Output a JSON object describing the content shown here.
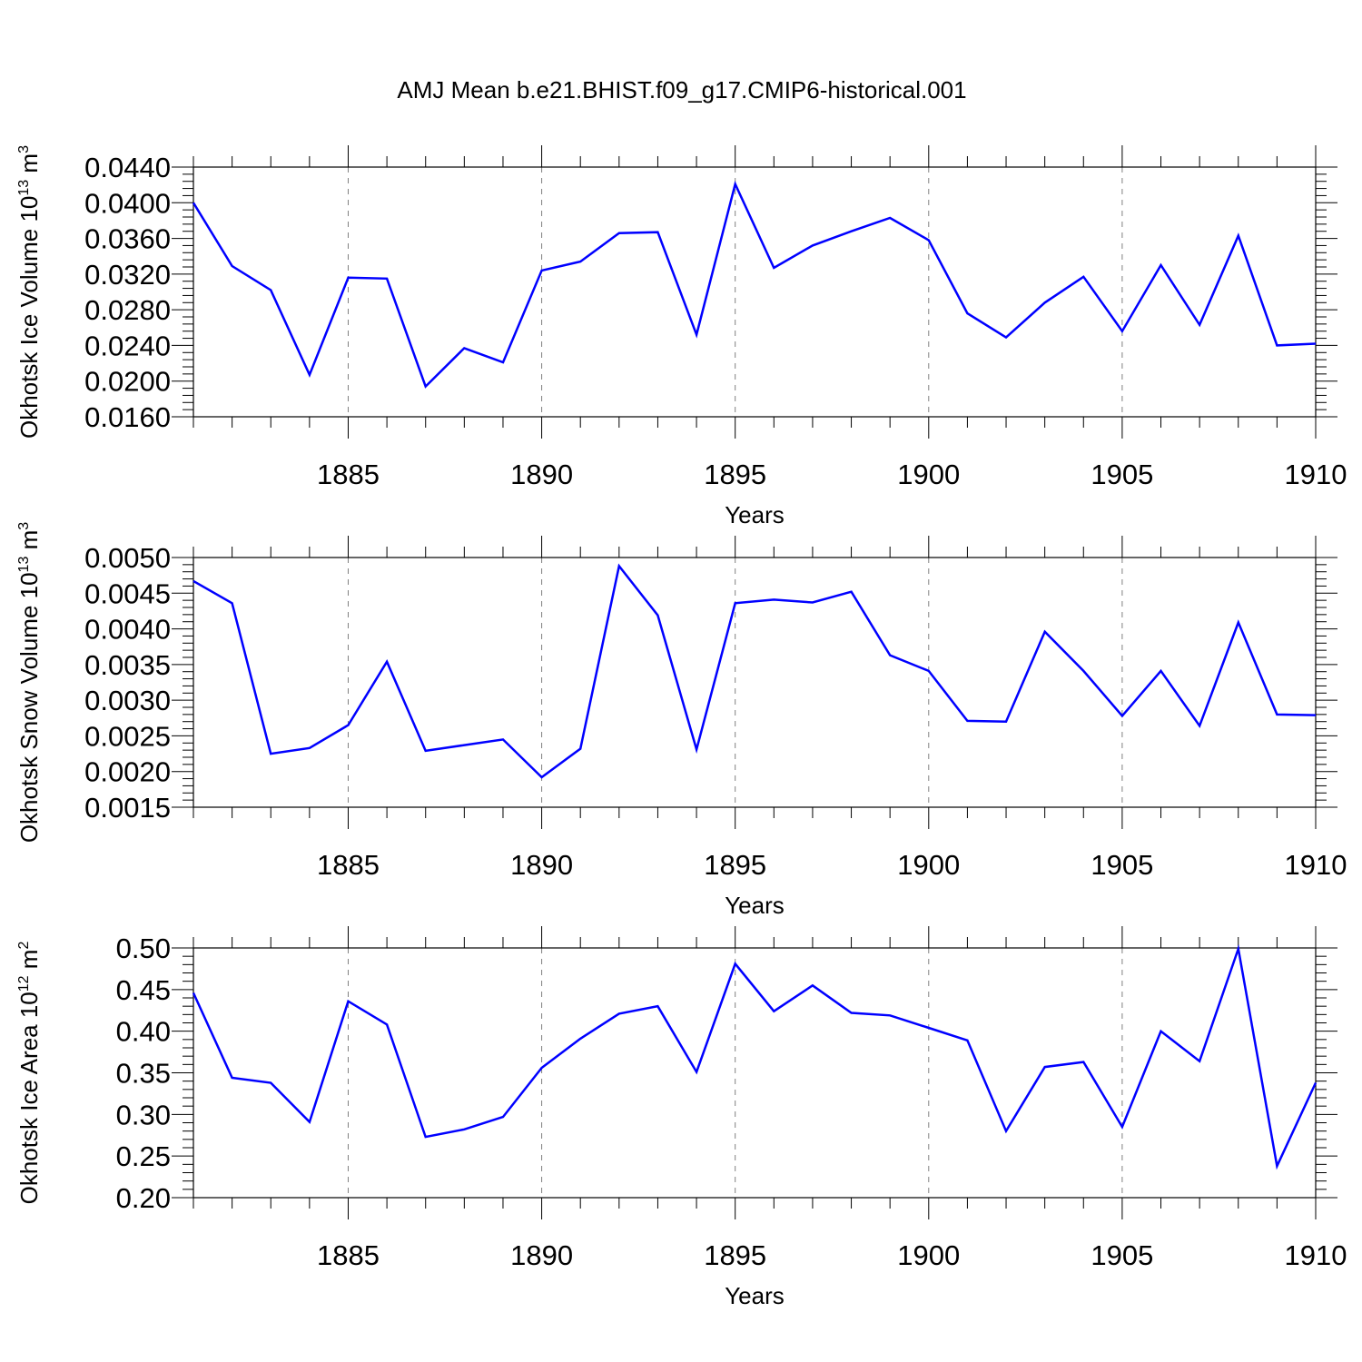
{
  "title": "AMJ Mean b.e21.BHIST.f09_g17.CMIP6-historical.001",
  "colors": {
    "line": "#0000ff",
    "axis": "#000000",
    "grid": "#808080",
    "background": "#ffffff"
  },
  "chart_data": [
    {
      "type": "line",
      "ylabel": "Okhotsk Ice Volume",
      "yunit_base": "10",
      "yunit_exp": "13",
      "yunit_sym": "m",
      "yunit_pow": "3",
      "xlabel": "Years",
      "xlim": [
        1881,
        1910
      ],
      "ylim": [
        0.016,
        0.044
      ],
      "yticks": [
        0.016,
        0.02,
        0.024,
        0.028,
        0.032,
        0.036,
        0.04,
        0.044
      ],
      "ytick_labels": [
        "0.0160",
        "0.0200",
        "0.0240",
        "0.0280",
        "0.0320",
        "0.0360",
        "0.0400",
        "0.0440"
      ],
      "xticks": [
        1885,
        1890,
        1895,
        1900,
        1905,
        1910
      ],
      "xtick_labels": [
        "1885",
        "1890",
        "1895",
        "1900",
        "1905",
        "1910"
      ],
      "grid": "vertical dashed at major x ticks",
      "x": [
        1881,
        1882,
        1883,
        1884,
        1885,
        1886,
        1887,
        1888,
        1889,
        1890,
        1891,
        1892,
        1893,
        1894,
        1895,
        1896,
        1897,
        1898,
        1899,
        1900,
        1901,
        1902,
        1903,
        1904,
        1905,
        1906,
        1907,
        1908,
        1909,
        1910
      ],
      "series": [
        {
          "values": [
            0.04,
            0.0329,
            0.0302,
            0.0207,
            0.0316,
            0.0315,
            0.0194,
            0.0237,
            0.0221,
            0.0324,
            0.0334,
            0.0366,
            0.0367,
            0.0252,
            0.0421,
            0.0327,
            0.0352,
            0.0368,
            0.0383,
            0.0358,
            0.0276,
            0.0249,
            0.0288,
            0.0317,
            0.0256,
            0.033,
            0.0263,
            0.0363,
            0.024,
            0.0242
          ]
        }
      ]
    },
    {
      "type": "line",
      "ylabel": "Okhotsk Snow Volume",
      "yunit_base": "10",
      "yunit_exp": "13",
      "yunit_sym": "m",
      "yunit_pow": "3",
      "xlabel": "Years",
      "xlim": [
        1881,
        1910
      ],
      "ylim": [
        0.0015,
        0.005
      ],
      "yticks": [
        0.0015,
        0.002,
        0.0025,
        0.003,
        0.0035,
        0.004,
        0.0045,
        0.005
      ],
      "ytick_labels": [
        "0.0015",
        "0.0020",
        "0.0025",
        "0.0030",
        "0.0035",
        "0.0040",
        "0.0045",
        "0.0050"
      ],
      "xticks": [
        1885,
        1890,
        1895,
        1900,
        1905,
        1910
      ],
      "xtick_labels": [
        "1885",
        "1890",
        "1895",
        "1900",
        "1905",
        "1910"
      ],
      "grid": "vertical dashed at major x ticks",
      "x": [
        1881,
        1882,
        1883,
        1884,
        1885,
        1886,
        1887,
        1888,
        1889,
        1890,
        1891,
        1892,
        1893,
        1894,
        1895,
        1896,
        1897,
        1898,
        1899,
        1900,
        1901,
        1902,
        1903,
        1904,
        1905,
        1906,
        1907,
        1908,
        1909,
        1910
      ],
      "series": [
        {
          "values": [
            0.00467,
            0.00436,
            0.00225,
            0.00233,
            0.00265,
            0.00354,
            0.00229,
            0.00237,
            0.00245,
            0.00192,
            0.00232,
            0.00488,
            0.00419,
            0.00231,
            0.00436,
            0.00441,
            0.00437,
            0.00452,
            0.00363,
            0.00341,
            0.00271,
            0.0027,
            0.00396,
            0.00341,
            0.00278,
            0.00341,
            0.00264,
            0.00409,
            0.0028,
            0.00279
          ]
        }
      ]
    },
    {
      "type": "line",
      "ylabel": "Okhotsk Ice Area",
      "yunit_base": "10",
      "yunit_exp": "12",
      "yunit_sym": "m",
      "yunit_pow": "2",
      "xlabel": "Years",
      "xlim": [
        1881,
        1910
      ],
      "ylim": [
        0.2,
        0.5
      ],
      "yticks": [
        0.2,
        0.25,
        0.3,
        0.35,
        0.4,
        0.45,
        0.5
      ],
      "ytick_labels": [
        "0.20",
        "0.25",
        "0.30",
        "0.35",
        "0.40",
        "0.45",
        "0.50"
      ],
      "xticks": [
        1885,
        1890,
        1895,
        1900,
        1905,
        1910
      ],
      "xtick_labels": [
        "1885",
        "1890",
        "1895",
        "1900",
        "1905",
        "1910"
      ],
      "grid": "vertical dashed at major x ticks",
      "x": [
        1881,
        1882,
        1883,
        1884,
        1885,
        1886,
        1887,
        1888,
        1889,
        1890,
        1891,
        1892,
        1893,
        1894,
        1895,
        1896,
        1897,
        1898,
        1899,
        1900,
        1901,
        1902,
        1903,
        1904,
        1905,
        1906,
        1907,
        1908,
        1909,
        1910
      ],
      "series": [
        {
          "values": [
            0.446,
            0.344,
            0.338,
            0.291,
            0.436,
            0.408,
            0.273,
            0.282,
            0.297,
            0.356,
            0.391,
            0.421,
            0.43,
            0.351,
            0.481,
            0.424,
            0.455,
            0.422,
            0.419,
            0.404,
            0.389,
            0.28,
            0.357,
            0.363,
            0.285,
            0.4,
            0.364,
            0.499,
            0.238,
            0.338
          ]
        }
      ]
    }
  ]
}
